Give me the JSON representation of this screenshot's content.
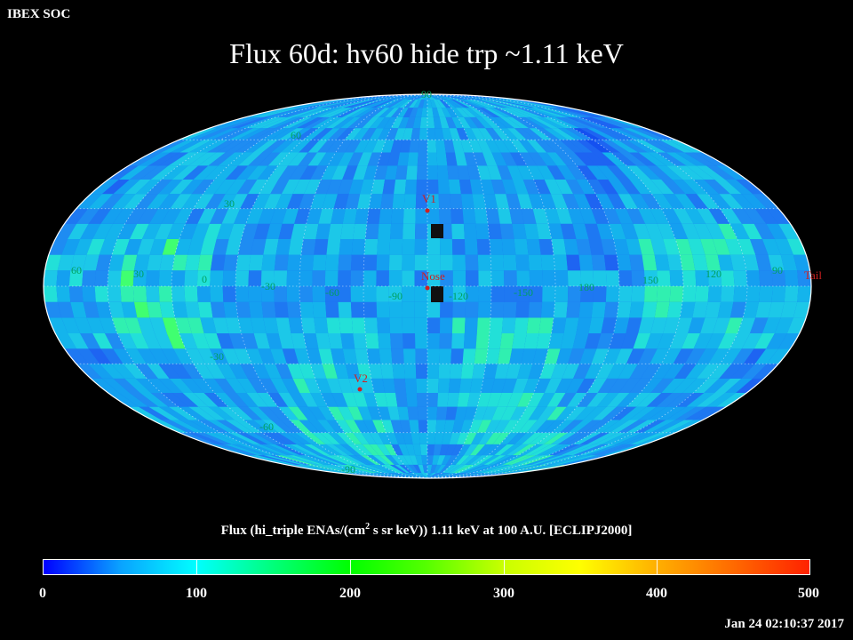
{
  "header": {
    "org": "IBEX SOC",
    "title": "Flux   60d: hv60 hide trp ~1.11 keV",
    "timestamp": "Jan 24 02:10:37 2017"
  },
  "map": {
    "projection": "Mollweide",
    "lat_labels": {
      "top": "90",
      "upper_60": "60",
      "upper_30": "30",
      "lower_30": "-30",
      "lower_60": "-60",
      "bottom": "-90"
    },
    "lon_labels": [
      "60",
      "30",
      "0",
      "-30",
      "-60",
      "-90",
      "-120",
      "-150",
      "180",
      "150",
      "120",
      "90"
    ],
    "markers": {
      "v1": "V1",
      "nose": "Nose",
      "v2": "V2",
      "tail": "Tail"
    },
    "colors": {
      "label": "#00a060",
      "marker": "#d02020",
      "void": "#101010"
    }
  },
  "colorbar": {
    "caption_pre": "Flux (hi_triple ENAs/(cm",
    "caption_sup": "2",
    "caption_post": " s sr keV))  1.11 keV at 100 A.U. [ECLIPJ2000]",
    "tick_labels": [
      "0",
      "100",
      "200",
      "300",
      "400",
      "500"
    ],
    "range": [
      0,
      500
    ]
  }
}
